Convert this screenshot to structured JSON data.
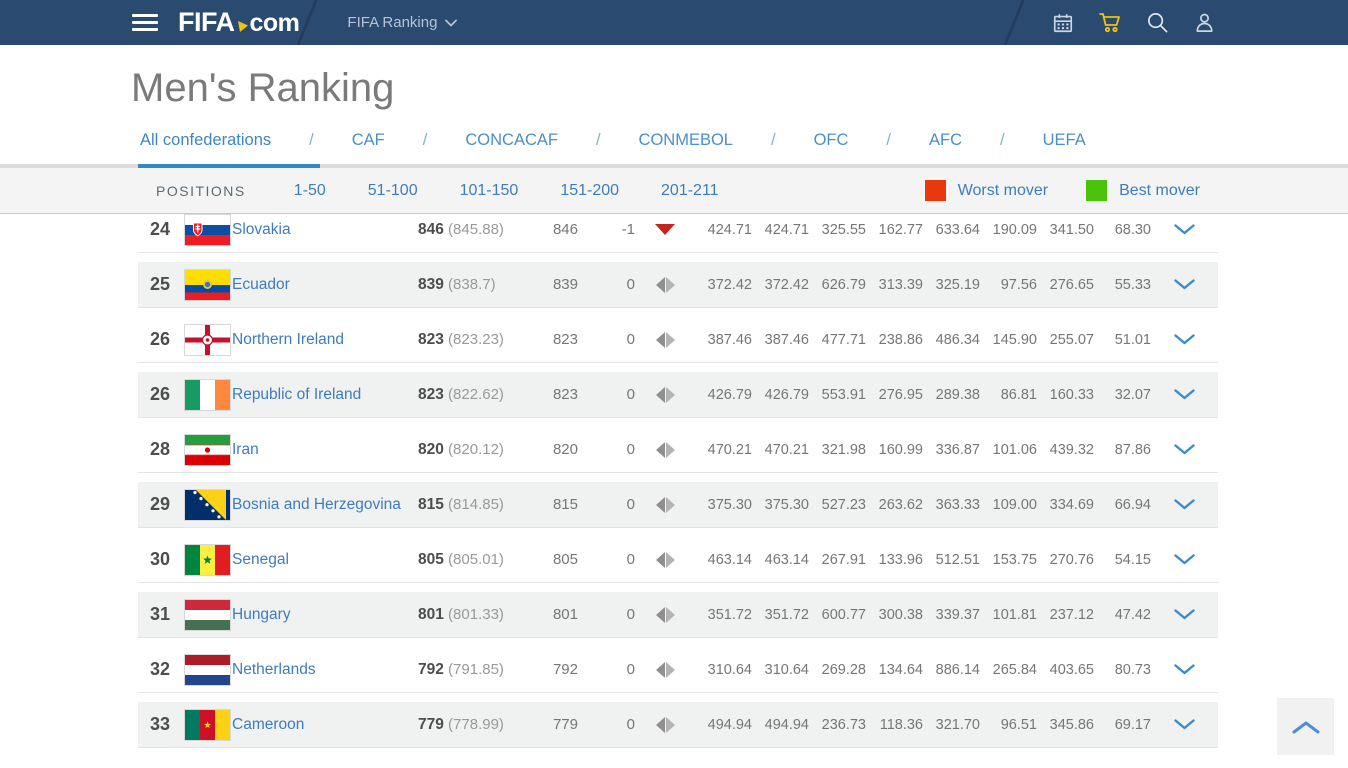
{
  "navbar": {
    "logo_fifa": "FIFA",
    "logo_com": "com",
    "section_label": "FIFA Ranking",
    "icons": [
      "calendar-icon",
      "cart-icon",
      "search-icon",
      "user-icon"
    ],
    "colors": {
      "bar": "#2b4a70",
      "cart_icon": "#f0c20c",
      "icon": "#c9d6e4"
    }
  },
  "header": {
    "title": "Men's Ranking"
  },
  "tabs": {
    "separator": "/",
    "items": [
      {
        "label": "All confederations",
        "active": true
      },
      {
        "label": "CAF",
        "active": false
      },
      {
        "label": "CONCACAF",
        "active": false
      },
      {
        "label": "CONMEBOL",
        "active": false
      },
      {
        "label": "OFC",
        "active": false
      },
      {
        "label": "AFC",
        "active": false
      },
      {
        "label": "UEFA",
        "active": false
      }
    ]
  },
  "positions_bar": {
    "label": "POSITIONS",
    "ranges": [
      {
        "label": "1-50",
        "active": true
      },
      {
        "label": "51-100",
        "active": false
      },
      {
        "label": "101-150",
        "active": false
      },
      {
        "label": "151-200",
        "active": false
      },
      {
        "label": "201-211",
        "active": false
      }
    ],
    "legend": [
      {
        "label": "Worst mover",
        "color": "#e8380d"
      },
      {
        "label": "Best mover",
        "color": "#4cc30b"
      }
    ]
  },
  "table": {
    "rows": [
      {
        "rank": "24",
        "country": "Slovakia",
        "flag": "svk",
        "points": "846",
        "points_detail": "(845.88)",
        "previous": "846",
        "change": "-1",
        "trend": "down",
        "values": [
          "424.71",
          "424.71",
          "325.55",
          "162.77",
          "633.64",
          "190.09",
          "341.50",
          "68.30"
        ]
      },
      {
        "rank": "25",
        "country": "Ecuador",
        "flag": "ecu",
        "points": "839",
        "points_detail": "(838.7)",
        "previous": "839",
        "change": "0",
        "trend": "flat",
        "values": [
          "372.42",
          "372.42",
          "626.79",
          "313.39",
          "325.19",
          "97.56",
          "276.65",
          "55.33"
        ]
      },
      {
        "rank": "26",
        "country": "Northern Ireland",
        "flag": "nir",
        "points": "823",
        "points_detail": "(823.23)",
        "previous": "823",
        "change": "0",
        "trend": "flat",
        "values": [
          "387.46",
          "387.46",
          "477.71",
          "238.86",
          "486.34",
          "145.90",
          "255.07",
          "51.01"
        ]
      },
      {
        "rank": "26",
        "country": "Republic of Ireland",
        "flag": "irl",
        "points": "823",
        "points_detail": "(822.62)",
        "previous": "823",
        "change": "0",
        "trend": "flat",
        "values": [
          "426.79",
          "426.79",
          "553.91",
          "276.95",
          "289.38",
          "86.81",
          "160.33",
          "32.07"
        ]
      },
      {
        "rank": "28",
        "country": "Iran",
        "flag": "irn",
        "points": "820",
        "points_detail": "(820.12)",
        "previous": "820",
        "change": "0",
        "trend": "flat",
        "values": [
          "470.21",
          "470.21",
          "321.98",
          "160.99",
          "336.87",
          "101.06",
          "439.32",
          "87.86"
        ]
      },
      {
        "rank": "29",
        "country": "Bosnia and Herzegovina",
        "flag": "bih",
        "points": "815",
        "points_detail": "(814.85)",
        "previous": "815",
        "change": "0",
        "trend": "flat",
        "values": [
          "375.30",
          "375.30",
          "527.23",
          "263.62",
          "363.33",
          "109.00",
          "334.69",
          "66.94"
        ]
      },
      {
        "rank": "30",
        "country": "Senegal",
        "flag": "sen",
        "points": "805",
        "points_detail": "(805.01)",
        "previous": "805",
        "change": "0",
        "trend": "flat",
        "values": [
          "463.14",
          "463.14",
          "267.91",
          "133.96",
          "512.51",
          "153.75",
          "270.76",
          "54.15"
        ]
      },
      {
        "rank": "31",
        "country": "Hungary",
        "flag": "hun",
        "points": "801",
        "points_detail": "(801.33)",
        "previous": "801",
        "change": "0",
        "trend": "flat",
        "values": [
          "351.72",
          "351.72",
          "600.77",
          "300.38",
          "339.37",
          "101.81",
          "237.12",
          "47.42"
        ]
      },
      {
        "rank": "32",
        "country": "Netherlands",
        "flag": "ned",
        "points": "792",
        "points_detail": "(791.85)",
        "previous": "792",
        "change": "0",
        "trend": "flat",
        "values": [
          "310.64",
          "310.64",
          "269.28",
          "134.64",
          "886.14",
          "265.84",
          "403.65",
          "80.73"
        ]
      },
      {
        "rank": "33",
        "country": "Cameroon",
        "flag": "cmr",
        "points": "779",
        "points_detail": "(778.99)",
        "previous": "779",
        "change": "0",
        "trend": "flat",
        "values": [
          "494.94",
          "494.94",
          "236.73",
          "118.36",
          "321.70",
          "96.51",
          "345.86",
          "69.17"
        ]
      }
    ]
  }
}
